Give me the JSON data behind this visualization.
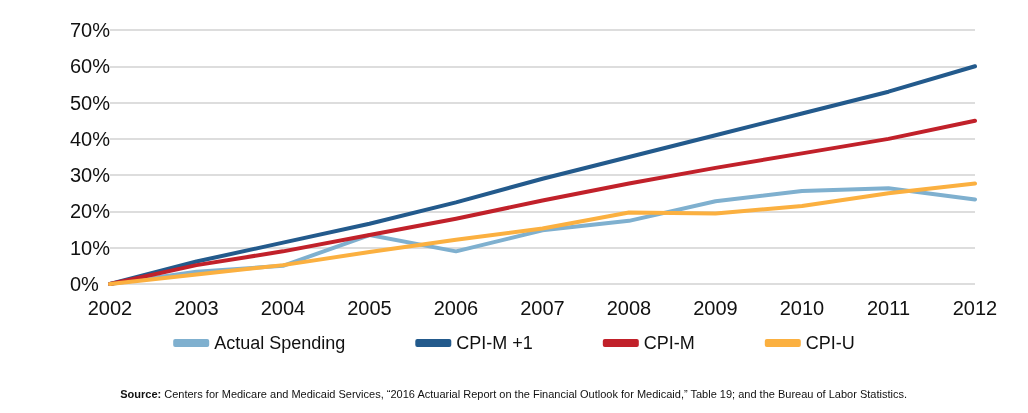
{
  "chart_data": {
    "type": "line",
    "categories": [
      "2002",
      "2003",
      "2004",
      "2005",
      "2006",
      "2007",
      "2008",
      "2009",
      "2010",
      "2011",
      "2012"
    ],
    "series": [
      {
        "name": "Actual Spending",
        "color": "#7fb0cf",
        "values": [
          0,
          3.4,
          5,
          13.5,
          9,
          14.8,
          17.4,
          22.8,
          25.6,
          26.4,
          23.3
        ]
      },
      {
        "name": "CPI-M +1",
        "color": "#235a8c",
        "values": [
          0,
          6.2,
          11.4,
          16.6,
          22.5,
          29,
          35,
          41,
          47,
          53,
          60
        ]
      },
      {
        "name": "CPI-M",
        "color": "#c1212a",
        "values": [
          0,
          5.2,
          9,
          13.5,
          18,
          23,
          27.7,
          32,
          36,
          40,
          45
        ]
      },
      {
        "name": "CPI-U",
        "color": "#fbb040",
        "values": [
          0,
          2.6,
          5.2,
          8.8,
          12.2,
          15.3,
          19.7,
          19.4,
          21.5,
          25,
          27.7
        ]
      }
    ],
    "ylim": [
      0,
      70
    ],
    "yticks": [
      {
        "value": 0,
        "label": "0%"
      },
      {
        "value": 10,
        "label": "10%"
      },
      {
        "value": 20,
        "label": "20%"
      },
      {
        "value": 30,
        "label": "30%"
      },
      {
        "value": 40,
        "label": "40%"
      },
      {
        "value": 50,
        "label": "50%"
      },
      {
        "value": 60,
        "label": "60%"
      },
      {
        "value": 70,
        "label": "70%"
      }
    ],
    "grid": "y",
    "legend": "bottom",
    "marker": "none",
    "line_style": "solid",
    "annotations": [
      "Source: Centers for Medicare and Medicaid Services, “2016 Actuarial Report on the Financial Outlook for Medicaid,” Table 19; and the Bureau of Labor Statistics."
    ]
  }
}
